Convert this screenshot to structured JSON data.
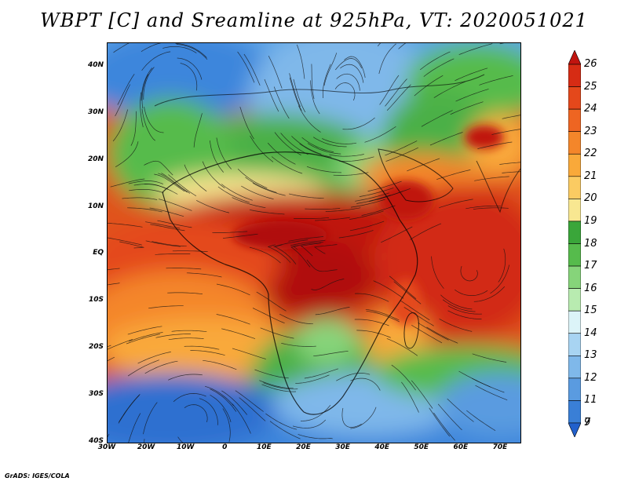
{
  "title": "WBPT [C] and Sreamline at 925hPa, VT: 2020051021",
  "credit": "GrADS: IGES/COLA",
  "map": {
    "lon_range": [
      -30,
      75
    ],
    "lat_range": [
      -40,
      45
    ],
    "lat_labels": [
      "40N",
      "30N",
      "20N",
      "10N",
      "EQ",
      "10S",
      "20S",
      "30S",
      "40S"
    ],
    "lat_values": [
      40,
      30,
      20,
      10,
      0,
      -10,
      -20,
      -30,
      -40
    ],
    "lon_labels": [
      "30W",
      "20W",
      "10W",
      "0",
      "10E",
      "20E",
      "30E",
      "40E",
      "50E",
      "60E",
      "70E"
    ],
    "lon_values": [
      -30,
      -20,
      -10,
      0,
      10,
      20,
      30,
      40,
      50,
      60,
      70
    ]
  },
  "colorbar": {
    "labels": [
      "26",
      "25",
      "24",
      "23",
      "22",
      "21",
      "20",
      "19",
      "18",
      "17",
      "16",
      "15",
      "14",
      "13",
      "12",
      "11",
      "9",
      "7"
    ],
    "colors": [
      "#c0140f",
      "#d62c14",
      "#e4481b",
      "#ee6522",
      "#f4862a",
      "#f9a93a",
      "#fbcb62",
      "#f8e791",
      "#3aa63a",
      "#56bb4c",
      "#86d47a",
      "#b8ebb0",
      "#dcf4f8",
      "#a8d4f2",
      "#7fb8ea",
      "#5a9be0",
      "#3a7fd6",
      "#2160cc"
    ]
  }
}
